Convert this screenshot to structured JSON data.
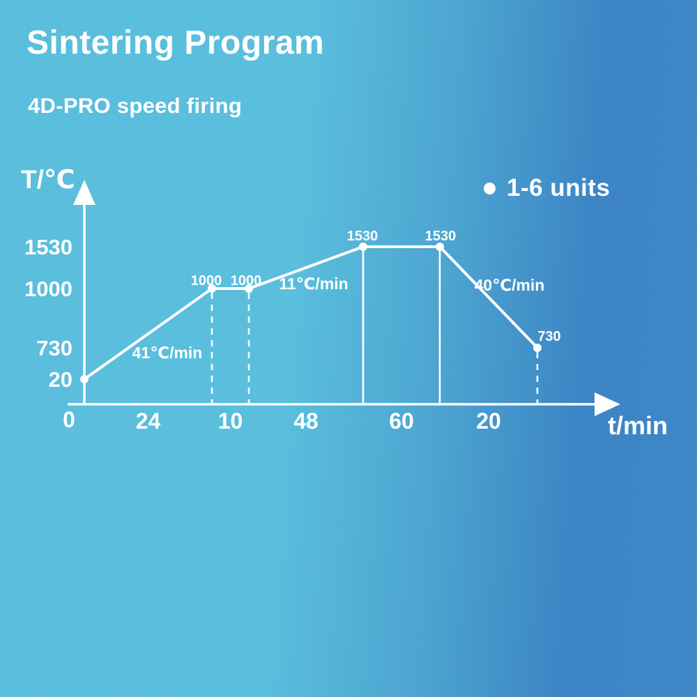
{
  "header": {
    "title": "Sintering Program",
    "subtitle": "4D-PRO speed firing"
  },
  "colors": {
    "background_left": "#57bcdc",
    "background_right": "#3a80c3",
    "foreground": "#ffffff"
  },
  "chart_data": {
    "type": "line",
    "title": "Sintering Program",
    "subtitle": "4D-PRO speed firing",
    "ylabel": "T/℃",
    "xlabel": "t/min",
    "origin_label": "0",
    "legend": {
      "marker": "dot-icon",
      "label": "1-6 units"
    },
    "y_ticks": [
      "1530",
      "1000",
      "730",
      "20"
    ],
    "x_segment_durations_min": [
      "24",
      "10",
      "48",
      "60",
      "20"
    ],
    "points": [
      {
        "t_cumulative_min": 0,
        "temp_c": 20,
        "label": "",
        "guide": "none"
      },
      {
        "t_cumulative_min": 24,
        "temp_c": 1000,
        "label": "1000",
        "guide": "dashed"
      },
      {
        "t_cumulative_min": 34,
        "temp_c": 1000,
        "label": "1000",
        "guide": "dashed"
      },
      {
        "t_cumulative_min": 82,
        "temp_c": 1530,
        "label": "1530",
        "guide": "solid"
      },
      {
        "t_cumulative_min": 142,
        "temp_c": 1530,
        "label": "1530",
        "guide": "solid"
      },
      {
        "t_cumulative_min": 162,
        "temp_c": 730,
        "label": "730",
        "guide": "dashed"
      }
    ],
    "rate_annotations": [
      {
        "text": "41℃/min",
        "segment_index": 0
      },
      {
        "text": "11℃/min",
        "segment_index": 2
      },
      {
        "text": "40℃/min",
        "segment_index": 4
      }
    ]
  }
}
